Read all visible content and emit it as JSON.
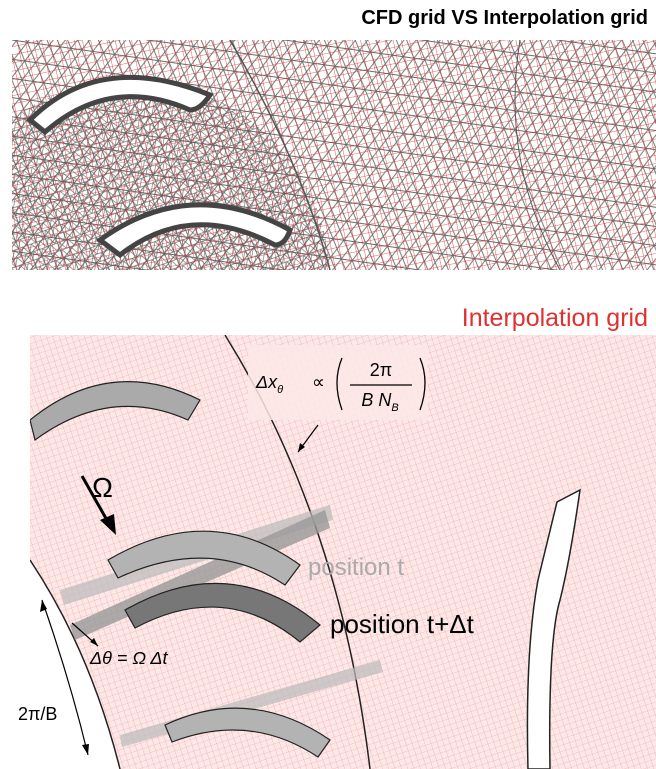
{
  "header": {
    "title": "CFD grid VS Interpolation grid"
  },
  "panel": {
    "title": "Interpolation grid"
  },
  "labels": {
    "omega": "Ω",
    "position_t": "position t",
    "position_t_dt": "position t+Δt",
    "dtheta": "Δθ = Ω Δt",
    "pitch": "2π/B"
  },
  "formula": {
    "lhs": "Δx",
    "lhs_sub": "θ",
    "relation": "∝",
    "numerator": "2π",
    "denominator": "B N",
    "denominator_sub": "B"
  }
}
